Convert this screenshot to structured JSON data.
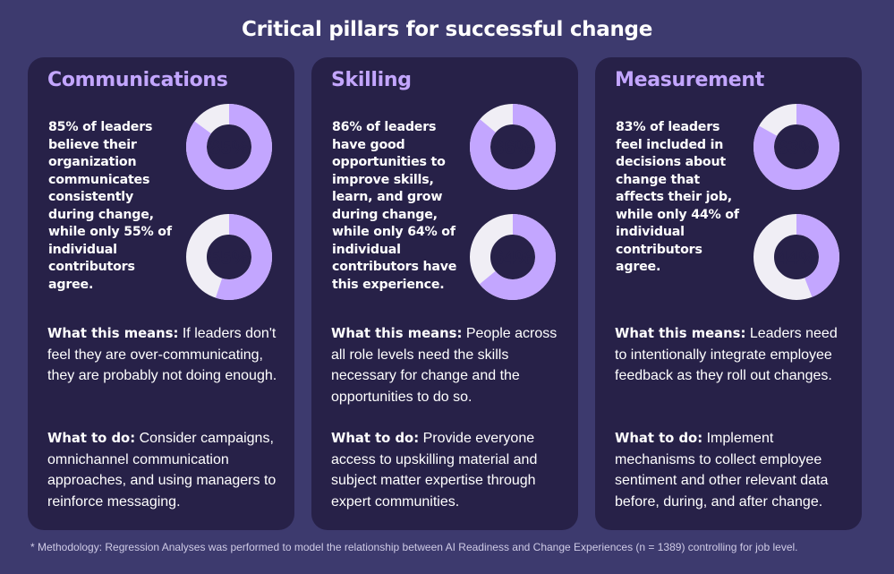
{
  "title": "Critical pillars for successful change",
  "colors": {
    "background": "#3d3a6e",
    "card": "#272148",
    "accent": "#c3a6ff",
    "ring_track": "#f0eef5"
  },
  "chart_data": [
    {
      "type": "pie",
      "heading": "Communications",
      "stat_text": "85% of leaders believe their organization communicates consistently during change, while only 55% of individual contributors agree.",
      "values": [
        85,
        55
      ],
      "labels": [
        "85%",
        "55%"
      ],
      "means_label": "What this means:",
      "means_text": "If leaders don't feel they are over-communicating, they are probably not doing enough.",
      "todo_label": "What to do:",
      "todo_text": "Consider campaigns, omnichannel communication approaches, and using managers to reinforce messaging."
    },
    {
      "type": "pie",
      "heading": "Skilling",
      "stat_text": "86% of leaders have good opportunities to improve skills, learn, and grow during change, while only 64% of individual contributors have this experience.",
      "values": [
        86,
        64
      ],
      "labels": [
        "86%",
        "64%"
      ],
      "means_label": "What this means:",
      "means_text": "People across all role levels need the skills necessary for change and the opportunities to do so.",
      "todo_label": "What to do:",
      "todo_text": "Provide everyone access to upskilling material and subject matter expertise through expert communities."
    },
    {
      "type": "pie",
      "heading": "Measurement",
      "stat_text": "83% of leaders feel included in decisions about change that affects their job, while only 44% of individual contributors agree.",
      "values": [
        83,
        44
      ],
      "labels": [
        "83%",
        "44%"
      ],
      "means_label": "What this means:",
      "means_text": "Leaders need to intentionally integrate employee feedback as they roll out changes.",
      "todo_label": "What to do:",
      "todo_text": "Implement mechanisms to collect employee sentiment and other relevant data before, during, and after change."
    }
  ],
  "footnote": "* Methodology: Regression Analyses was performed to model the relationship between AI Readiness and Change Experiences (n = 1389) controlling for job level."
}
